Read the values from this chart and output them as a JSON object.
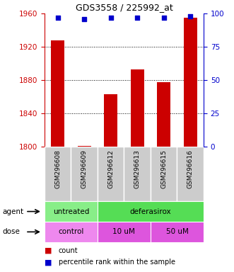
{
  "title": "GDS3558 / 225992_at",
  "samples": [
    "GSM296608",
    "GSM296609",
    "GSM296612",
    "GSM296613",
    "GSM296615",
    "GSM296616"
  ],
  "bar_values": [
    1928,
    1801,
    1863,
    1893,
    1878,
    1955
  ],
  "percentile_values": [
    97,
    96,
    97,
    97,
    97,
    98
  ],
  "bar_color": "#cc0000",
  "dot_color": "#0000cc",
  "ylim_left": [
    1800,
    1960
  ],
  "ylim_right": [
    0,
    100
  ],
  "yticks_left": [
    1800,
    1840,
    1880,
    1920,
    1960
  ],
  "yticks_right": [
    0,
    25,
    50,
    75,
    100
  ],
  "agent_groups": [
    {
      "label": "untreated",
      "start": 0,
      "end": 2,
      "color": "#88ee88"
    },
    {
      "label": "deferasirox",
      "start": 2,
      "end": 6,
      "color": "#55dd55"
    }
  ],
  "dose_groups": [
    {
      "label": "control",
      "start": 0,
      "end": 2,
      "color": "#ee88ee"
    },
    {
      "label": "10 uM",
      "start": 2,
      "end": 4,
      "color": "#dd55dd"
    },
    {
      "label": "50 uM",
      "start": 4,
      "end": 6,
      "color": "#dd55dd"
    }
  ],
  "legend_count_color": "#cc0000",
  "legend_dot_color": "#0000cc",
  "tick_color_left": "#cc0000",
  "tick_color_right": "#0000cc",
  "grid_color": "#000000",
  "label_bg_color": "#cccccc",
  "agent_untreated_color": "#88ee88",
  "agent_deferasirox_color": "#55dd55",
  "dose_control_color": "#ee88ee",
  "dose_uM_color": "#dd55dd"
}
